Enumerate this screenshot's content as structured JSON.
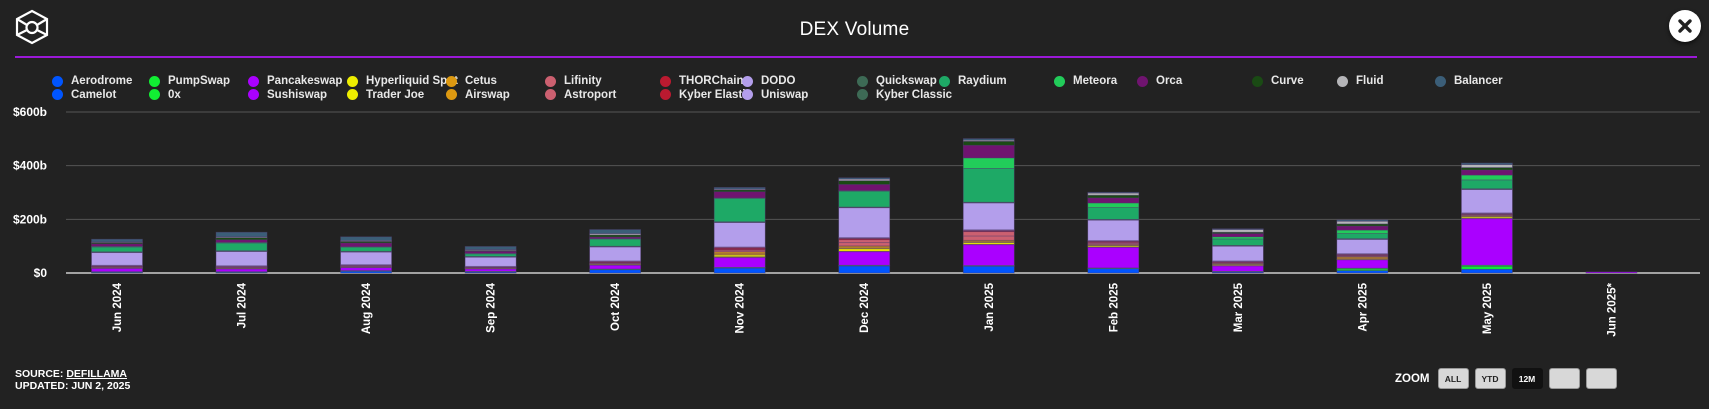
{
  "header": {
    "title": "DEX Volume",
    "logo_icon": "cube-logo-icon",
    "close_icon": "close-icon"
  },
  "colors": {
    "accent": "#9b19d8",
    "background": "#222222",
    "gridline": "#555555",
    "baseline": "#cccccc"
  },
  "footer": {
    "source_label": "SOURCE:",
    "source_link": "DEFILLAMA",
    "updated": "UPDATED: JUN 2, 2025"
  },
  "zoom_controls": {
    "label": "ZOOM",
    "buttons": [
      {
        "label": "ALL",
        "active": false
      },
      {
        "label": "YTD",
        "active": false
      },
      {
        "label": "12M",
        "active": true
      },
      {
        "label": "",
        "active": false
      },
      {
        "label": "",
        "active": false
      }
    ]
  },
  "chart_data": {
    "type": "bar",
    "stacked": true,
    "title": "DEX Volume",
    "xlabel": "",
    "ylabel": "",
    "ylim": [
      0,
      600
    ],
    "yticks": [
      0,
      200,
      400,
      600
    ],
    "ytick_labels": [
      "$0",
      "$200b",
      "$400b",
      "$600b"
    ],
    "grid": true,
    "legend_position": "top",
    "units": "USD billions",
    "categories": [
      "Jun 2024",
      "Jul 2024",
      "Aug 2024",
      "Sep 2024",
      "Oct 2024",
      "Nov 2024",
      "Dec 2024",
      "Jan 2025",
      "Feb 2025",
      "Mar 2025",
      "Apr 2025",
      "May 2025",
      "Jun 2025*"
    ],
    "series": [
      {
        "name": "Aerodrome",
        "color": "#0055ff",
        "values": [
          3,
          3,
          7,
          4,
          13,
          19,
          27,
          26,
          17,
          4,
          9,
          14,
          0
        ]
      },
      {
        "name": "Camelot",
        "color": "#0055ff",
        "values": [
          1,
          1,
          1,
          1,
          1,
          1,
          1,
          1,
          1,
          1,
          0,
          0,
          0
        ]
      },
      {
        "name": "PumpSwap",
        "color": "#11ee33",
        "values": [
          0,
          0,
          0,
          0,
          0,
          0,
          0,
          0,
          0,
          0,
          6,
          11,
          0
        ]
      },
      {
        "name": "0x",
        "color": "#11ee33",
        "values": [
          1,
          1,
          1,
          1,
          1,
          1,
          1,
          1,
          1,
          1,
          3,
          4,
          0
        ]
      },
      {
        "name": "Pancakeswap",
        "color": "#aa00ff",
        "values": [
          13,
          11,
          12,
          10,
          15,
          37,
          51,
          78,
          77,
          21,
          32,
          174,
          4
        ]
      },
      {
        "name": "Sushiswap",
        "color": "#aa00ff",
        "values": [
          1,
          1,
          1,
          1,
          1,
          1,
          1,
          1,
          1,
          1,
          1,
          1,
          0
        ]
      },
      {
        "name": "Hyperliquid Spot",
        "color": "#eeee00",
        "values": [
          0,
          0,
          0,
          0,
          1,
          4,
          10,
          7,
          5,
          4,
          1,
          5,
          0
        ]
      },
      {
        "name": "Trader Joe",
        "color": "#eeee00",
        "values": [
          1,
          1,
          1,
          1,
          1,
          5,
          1,
          1,
          1,
          1,
          1,
          2,
          0
        ]
      },
      {
        "name": "Cetus",
        "color": "#dd9911",
        "values": [
          1,
          1,
          1,
          1,
          2,
          6,
          5,
          4,
          2,
          2,
          4,
          2,
          0
        ]
      },
      {
        "name": "Airswap",
        "color": "#dd9911",
        "values": [
          1,
          1,
          1,
          1,
          1,
          5,
          4,
          3,
          1,
          1,
          4,
          1,
          0
        ]
      },
      {
        "name": "Lifinity",
        "color": "#cc6070",
        "values": [
          1,
          1,
          1,
          1,
          1,
          4,
          12,
          16,
          4,
          2,
          3,
          3,
          0
        ]
      },
      {
        "name": "Astroport",
        "color": "#cc6070",
        "values": [
          1,
          1,
          1,
          1,
          1,
          4,
          11,
          16,
          4,
          1,
          2,
          2,
          0
        ]
      },
      {
        "name": "THORChain",
        "color": "#bb1a30",
        "values": [
          2,
          2,
          2,
          1,
          3,
          5,
          4,
          3,
          3,
          3,
          3,
          2,
          0
        ]
      },
      {
        "name": "Kyber Elastic",
        "color": "#bb1a30",
        "values": [
          2,
          2,
          1,
          1,
          3,
          4,
          3,
          3,
          3,
          2,
          2,
          2,
          0
        ]
      },
      {
        "name": "DODO",
        "color": "#b39eeb",
        "values": [
          1,
          1,
          1,
          1,
          1,
          1,
          1,
          1,
          1,
          1,
          1,
          1,
          0
        ]
      },
      {
        "name": "Uniswap",
        "color": "#b39eeb",
        "values": [
          48,
          54,
          48,
          35,
          53,
          92,
          112,
          101,
          77,
          56,
          54,
          88,
          0
        ]
      },
      {
        "name": "Quickswap",
        "color": "#3d6a55",
        "values": [
          1,
          1,
          1,
          1,
          1,
          1,
          1,
          1,
          1,
          1,
          1,
          1,
          0
        ]
      },
      {
        "name": "Kyber Classic",
        "color": "#3d6a55",
        "values": [
          1,
          1,
          1,
          1,
          1,
          1,
          1,
          1,
          1,
          1,
          1,
          1,
          0
        ]
      },
      {
        "name": "Raydium",
        "color": "#1ea966",
        "values": [
          18,
          29,
          16,
          10,
          27,
          87,
          59,
          126,
          44,
          24,
          19,
          33,
          0
        ]
      },
      {
        "name": "Meteora",
        "color": "#22cc5a",
        "values": [
          2,
          2,
          1,
          1,
          1,
          2,
          2,
          39,
          17,
          8,
          13,
          18,
          0
        ]
      },
      {
        "name": "Orca",
        "color": "#701470",
        "values": [
          10,
          10,
          14,
          8,
          6,
          23,
          23,
          47,
          19,
          12,
          15,
          19,
          0
        ]
      },
      {
        "name": "Curve",
        "color": "#1a4a14",
        "values": [
          5,
          8,
          6,
          3,
          8,
          7,
          14,
          15,
          10,
          5,
          8,
          9,
          0
        ]
      },
      {
        "name": "Fluid",
        "color": "#b5b5b8",
        "values": [
          2,
          3,
          3,
          3,
          5,
          3,
          6,
          4,
          8,
          10,
          10,
          11,
          0
        ]
      },
      {
        "name": "Balancer",
        "color": "#3b5e78",
        "values": [
          10,
          17,
          14,
          12,
          15,
          6,
          5,
          6,
          3,
          3,
          5,
          6,
          0
        ]
      }
    ]
  }
}
